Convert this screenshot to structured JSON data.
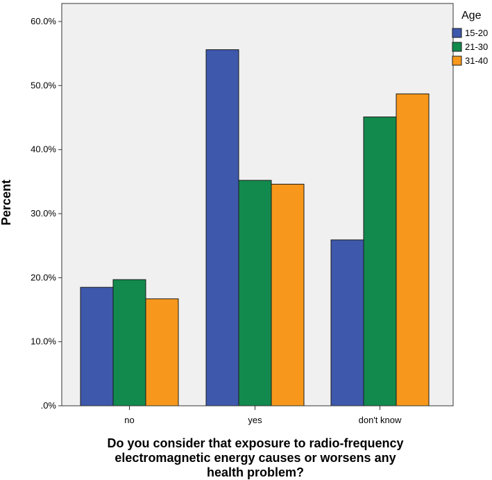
{
  "chart_data": {
    "type": "bar",
    "categories": [
      "no",
      "yes",
      "don't know"
    ],
    "series": [
      {
        "name": "15-20",
        "values": [
          18.5,
          55.6,
          25.9
        ],
        "color": "#3e58ac"
      },
      {
        "name": "21-30",
        "values": [
          19.7,
          35.2,
          45.1
        ],
        "color": "#128a4d"
      },
      {
        "name": "31-40",
        "values": [
          16.7,
          34.6,
          48.7
        ],
        "color": "#f7981c"
      }
    ],
    "ylabel": "Percent",
    "xlabel_lines": [
      "Do you consider that exposure to radio-frequency",
      "electromagnetic energy causes or worsens any",
      "health problem?"
    ],
    "ylim": [
      0,
      60
    ],
    "yticks": [
      0,
      10,
      20,
      30,
      40,
      50,
      60
    ],
    "ytick_labels": [
      ".0%",
      "10.0%",
      "20.0%",
      "30.0%",
      "40.0%",
      "50.0%",
      "60.0%"
    ],
    "legend_title": "Age",
    "legend_position": "right",
    "plot_background": "#f0f0f0",
    "grid": false
  }
}
